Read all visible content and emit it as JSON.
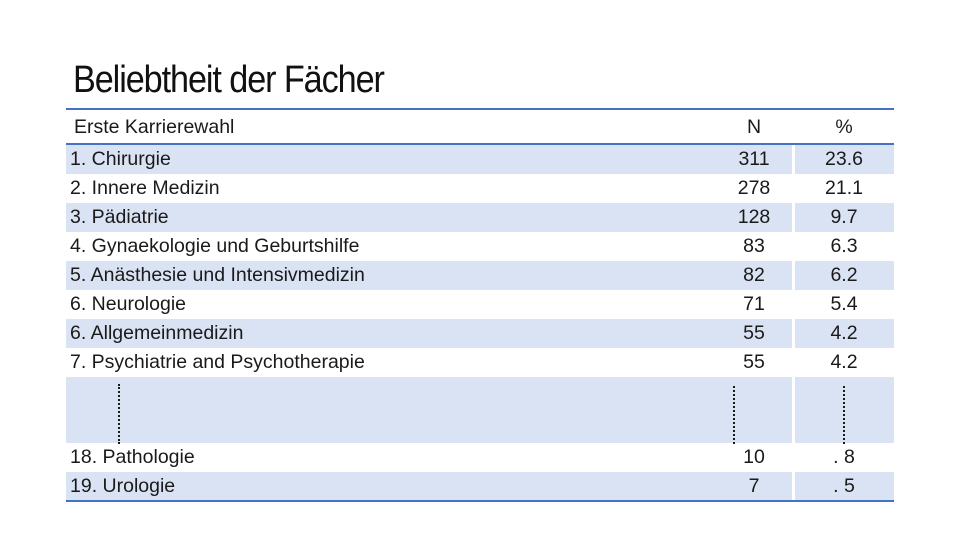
{
  "title": "Beliebtheit der Fächer",
  "table": {
    "header": {
      "name": "Erste Karrierewahl",
      "n": "N",
      "pct": "%"
    },
    "rows": [
      {
        "name": "1. Chirurgie",
        "n": "311",
        "pct": "23.6"
      },
      {
        "name": "2. Innere Medizin",
        "n": "278",
        "pct": "21.1"
      },
      {
        "name": "3. Pädiatrie",
        "n": "128",
        "pct": "9.7"
      },
      {
        "name": "4. Gynaekologie und Geburtshilfe",
        "n": "83",
        "pct": "6.3"
      },
      {
        "name": "5. Anästhesie und Intensivmedizin",
        "n": "82",
        "pct": "6.2"
      },
      {
        "name": "6. Neurologie",
        "n": "71",
        "pct": "5.4"
      },
      {
        "name": "6. Allgemeinmedizin",
        "n": "55",
        "pct": "4.2"
      },
      {
        "name": "7. Psychiatrie and Psychotherapie",
        "n": "55",
        "pct": "4.2"
      }
    ],
    "tail_rows": [
      {
        "name": "18. Pathologie",
        "n": "10",
        "pct": ". 8"
      },
      {
        "name": "19. Urologie",
        "n": "7",
        "pct": ". 5"
      }
    ]
  },
  "colors": {
    "rule": "#4472c4",
    "shade": "#dae3f3"
  }
}
